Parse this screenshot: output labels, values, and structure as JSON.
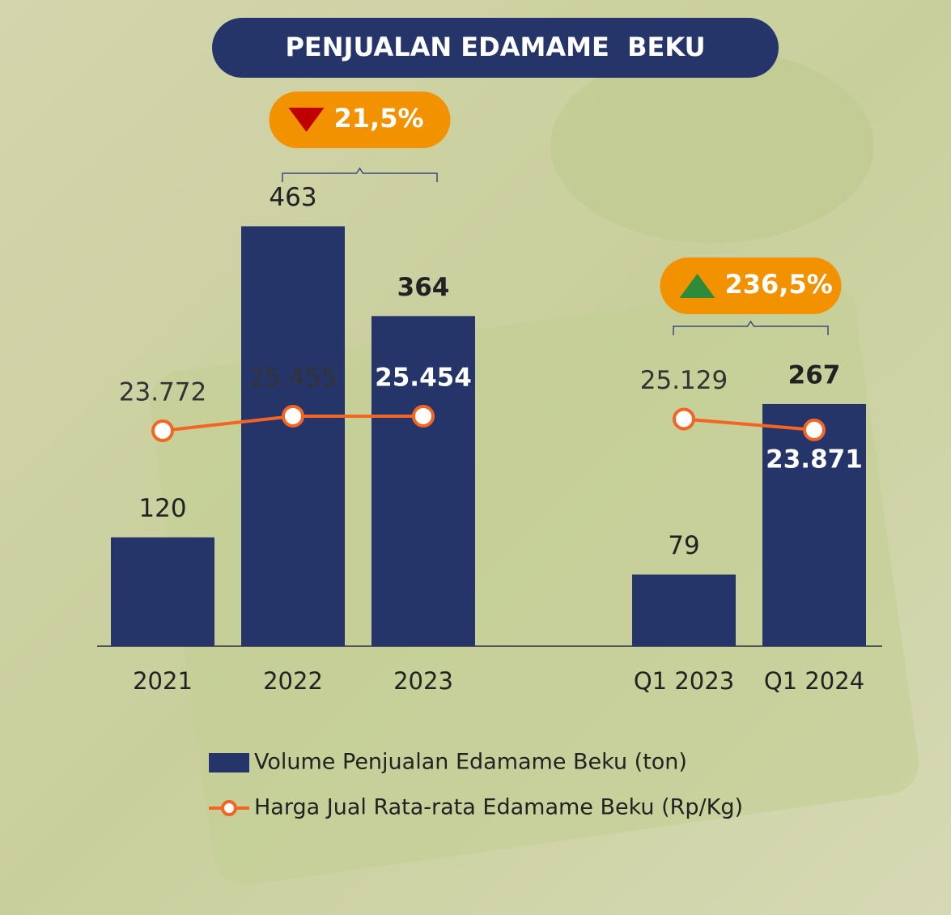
{
  "chart_data": {
    "type": "bar_line",
    "title": "PENJUALAN EDAMAME  BEKU",
    "categories": [
      "2021",
      "2022",
      "2023",
      null,
      "Q1 2023",
      "Q1 2024"
    ],
    "series": [
      {
        "name": "Volume Penjualan Edamame Beku (ton)",
        "type": "bar",
        "color": "#253569",
        "values": [
          120,
          463,
          364,
          null,
          79,
          267
        ]
      },
      {
        "name": "Harga Jual Rata-rata Edamame Beku (Rp/Kg)",
        "type": "line",
        "color": "#f26522",
        "values": [
          23772,
          25455,
          25454,
          null,
          25129,
          23871
        ],
        "value_labels": [
          "23.772",
          "25.455",
          "25.454",
          null,
          "25.129",
          "23.871"
        ]
      }
    ],
    "emphasis": [
      "2023",
      "Q1 2024"
    ],
    "annotations": [
      {
        "text": "21,5%",
        "direction": "down",
        "from": "2022",
        "to": "2023"
      },
      {
        "text": "236,5%",
        "direction": "up",
        "from": "Q1 2023",
        "to": "Q1 2024"
      }
    ]
  }
}
